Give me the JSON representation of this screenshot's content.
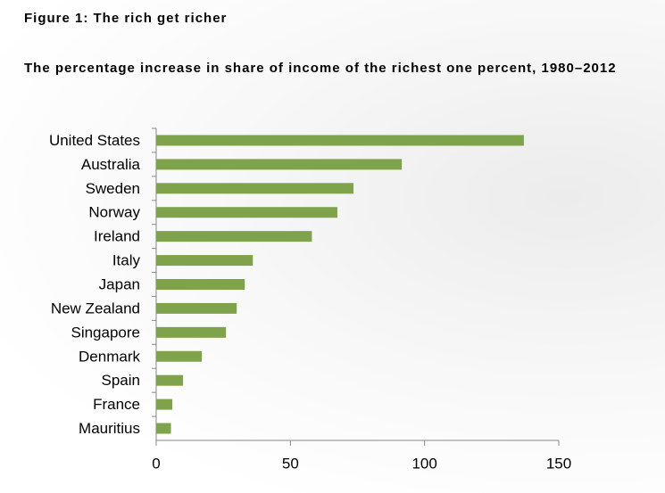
{
  "chart_data": {
    "type": "bar",
    "orientation": "horizontal",
    "title": "Figure 1: The rich get richer",
    "subtitle": "The percentage increase in share of income of the richest one percent, 1980–2012",
    "categories": [
      "United States",
      "Australia",
      "Sweden",
      "Norway",
      "Ireland",
      "Italy",
      "Japan",
      "New Zealand",
      "Singapore",
      "Denmark",
      "Spain",
      "France",
      "Mauritius"
    ],
    "values": [
      137,
      91.5,
      73.5,
      67.5,
      58,
      36,
      33,
      30,
      26,
      17,
      10,
      6,
      5.5
    ],
    "color": "#7fa34a",
    "xlim": [
      0,
      150
    ],
    "xticks": [
      0,
      50,
      100,
      150
    ],
    "grid": false
  }
}
